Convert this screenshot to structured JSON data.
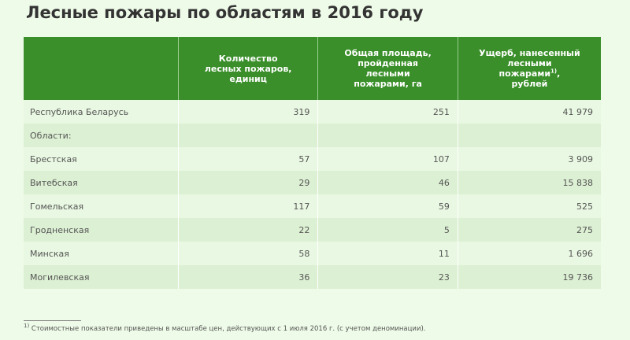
{
  "title": "Лесные пожары по областям в 2016 году",
  "table": {
    "headers": [
      "",
      "Количество лесных пожаров, единиц",
      "Общая площадь, пройденная лесными пожарами, га",
      "Ущерб, нанесенный лесными пожарами1), рублей"
    ],
    "header_lines": {
      "count": [
        "Количество",
        "лесных пожаров,",
        "единиц"
      ],
      "area": [
        "Общая площадь,",
        "пройденная",
        "лесными",
        "пожарами, га"
      ],
      "damage": [
        "Ущерб, нанесенный",
        "лесными",
        "пожарами",
        "1)",
        ",",
        "рублей"
      ]
    },
    "rows": [
      {
        "name": "Республика Беларусь",
        "count": "319",
        "area": "251",
        "damage": "41 979"
      },
      {
        "name": "Области:",
        "count": "",
        "area": "",
        "damage": ""
      },
      {
        "name": "Брестская",
        "count": "57",
        "area": "107",
        "damage": "3 909"
      },
      {
        "name": "Витебская",
        "count": "29",
        "area": "46",
        "damage": "15 838"
      },
      {
        "name": "Гомельская",
        "count": "117",
        "area": "59",
        "damage": "525"
      },
      {
        "name": "Гродненская",
        "count": "22",
        "area": "5",
        "damage": "275"
      },
      {
        "name": "Минская",
        "count": "58",
        "area": "11",
        "damage": "1 696"
      },
      {
        "name": "Могилевская",
        "count": "36",
        "area": "23",
        "damage": "19 736"
      }
    ]
  },
  "footnote": {
    "marker": "1)",
    "text": "Стоимостные показатели приведены в масштабе цен, действующих с 1 июля 2016 г. (с учетом деноминации)."
  },
  "colors": {
    "header_bg": "#3a8f2a",
    "page_bg": "#eefbe8",
    "row_light": "#e9f8e2",
    "row_dark": "#dcf0d3"
  }
}
